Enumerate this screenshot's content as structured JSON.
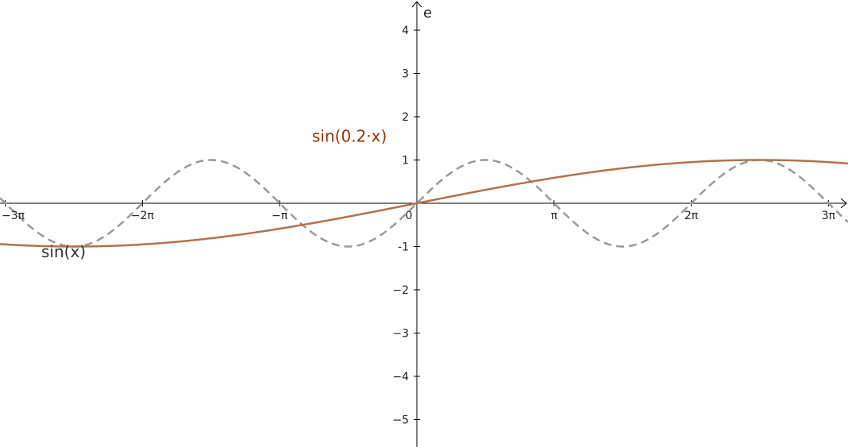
{
  "chart_data": {
    "type": "line",
    "title": "",
    "xlabel": "",
    "ylabel": "e",
    "xlim": [
      -9.43,
      9.72
    ],
    "ylim": [
      -5.6,
      4.7
    ],
    "grid": false,
    "legend": "none",
    "x_ticks": [
      {
        "value": -9.42478,
        "label": "−3π"
      },
      {
        "value": -6.28319,
        "label": "−2π"
      },
      {
        "value": -3.14159,
        "label": "−π"
      },
      {
        "value": 0,
        "label": "0"
      },
      {
        "value": 3.14159,
        "label": "π"
      },
      {
        "value": 6.28319,
        "label": "2π"
      },
      {
        "value": 9.42478,
        "label": "3π"
      }
    ],
    "y_ticks": [
      {
        "value": 4,
        "label": "4"
      },
      {
        "value": 3,
        "label": "3"
      },
      {
        "value": 2,
        "label": "2"
      },
      {
        "value": 1,
        "label": "1"
      },
      {
        "value": -1,
        "label": "-1"
      },
      {
        "value": -2,
        "label": "−2"
      },
      {
        "value": -3,
        "label": "−3"
      },
      {
        "value": -4,
        "label": "−4"
      },
      {
        "value": -5,
        "label": "−5"
      }
    ],
    "series": [
      {
        "name": "sin(x)",
        "function": "sin(x)",
        "color": "#999999",
        "dashed": true,
        "label_at": {
          "x": -8.6,
          "y": -1.25
        }
      },
      {
        "name": "sin(0.2·x)",
        "function": "sin(0.2x)",
        "color": "#b5714a",
        "label_color": "#993300",
        "dashed": false,
        "label_at": {
          "x": -2.4,
          "y": 1.42
        }
      }
    ]
  }
}
